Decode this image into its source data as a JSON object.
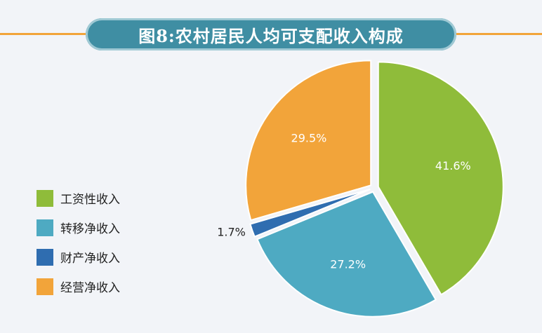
{
  "title": "图8:农村居民人均可支配收入构成",
  "colors": {
    "background": "#f2f4f8",
    "title_pill": "#3f8ea3",
    "rule": "#f2a43a"
  },
  "chart_data": {
    "type": "pie",
    "title": "图8:农村居民人均可支配收入构成",
    "legend_position": "left",
    "slices": [
      {
        "name": "工资性收入",
        "value": 41.6,
        "label": "41.6%",
        "color": "#8fbc3a"
      },
      {
        "name": "转移净收入",
        "value": 27.2,
        "label": "27.2%",
        "color": "#4eaac2"
      },
      {
        "name": "财产净收入",
        "value": 1.7,
        "label": "1.7%",
        "color": "#2f6db0"
      },
      {
        "name": "经营净收入",
        "value": 29.5,
        "label": "29.5%",
        "color": "#f2a43a"
      }
    ]
  }
}
